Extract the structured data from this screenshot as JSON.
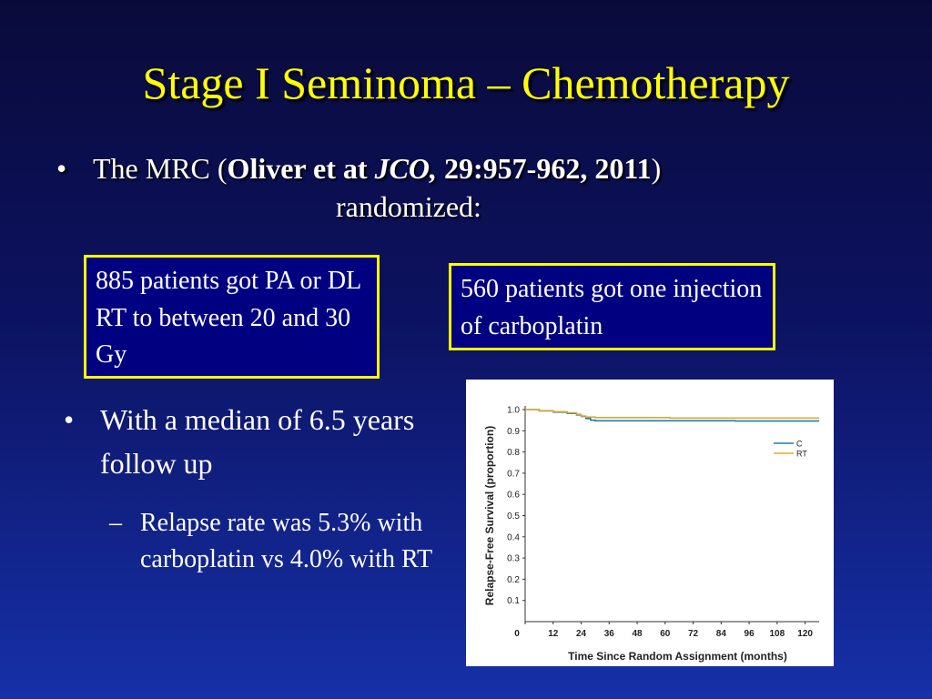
{
  "slide": {
    "title": "Stage I Seminoma – Chemotherapy",
    "bullet_symbol": "•",
    "dash_symbol": "–",
    "intro": {
      "prefix": "The MRC (",
      "author": "Oliver et at ",
      "journal": "JCO,",
      "citation": " 29:957-962, 2011",
      "suffix": ")",
      "line2": "randomized:"
    },
    "box_rt": "885 patients got PA or DL RT to between 20 and 30 Gy",
    "box_carbo": "560 patients got one injection of carboplatin",
    "followup": "With a median of 6.5 years follow up",
    "relapse": "Relapse rate was 5.3% with carboplatin vs 4.0% with RT"
  },
  "chart_data": {
    "type": "line",
    "xlabel": "Time Since Random Assignment (months)",
    "ylabel": "Relapse-Free Survival (proportion)",
    "xlim": [
      0,
      126
    ],
    "ylim": [
      0,
      1.0
    ],
    "x_ticks": [
      0,
      12,
      24,
      36,
      48,
      60,
      72,
      84,
      96,
      108,
      120
    ],
    "y_ticks": [
      0.1,
      0.2,
      0.3,
      0.4,
      0.5,
      0.6,
      0.7,
      0.8,
      0.9,
      1.0
    ],
    "legend": "top-right",
    "series": [
      {
        "name": "C",
        "color": "#1a7fb0",
        "x": [
          0,
          6,
          12,
          18,
          22,
          24,
          26,
          28,
          30,
          60,
          90,
          126
        ],
        "y": [
          1.0,
          0.994,
          0.988,
          0.982,
          0.975,
          0.968,
          0.958,
          0.95,
          0.947,
          0.947,
          0.946,
          0.946
        ]
      },
      {
        "name": "RT",
        "color": "#e0a830",
        "x": [
          0,
          6,
          12,
          18,
          22,
          24,
          26,
          30,
          60,
          62,
          126
        ],
        "y": [
          1.0,
          0.995,
          0.99,
          0.985,
          0.978,
          0.97,
          0.965,
          0.962,
          0.962,
          0.96,
          0.96
        ]
      }
    ]
  }
}
